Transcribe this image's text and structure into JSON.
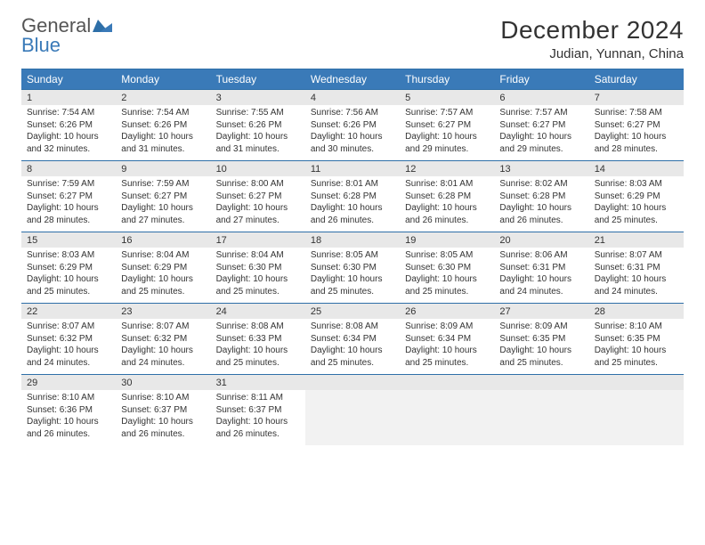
{
  "logo": {
    "text1": "General",
    "text2": "Blue"
  },
  "title": "December 2024",
  "location": "Judian, Yunnan, China",
  "colors": {
    "header_bg": "#3a7ab8",
    "header_text": "#ffffff",
    "border": "#2e6fa8",
    "daynum_bg": "#e8e8e8",
    "body_text": "#333333",
    "logo_gray": "#555555",
    "logo_blue": "#3a7ab8"
  },
  "weekdays": [
    "Sunday",
    "Monday",
    "Tuesday",
    "Wednesday",
    "Thursday",
    "Friday",
    "Saturday"
  ],
  "weeks": [
    [
      {
        "n": "1",
        "sr": "Sunrise: 7:54 AM",
        "ss": "Sunset: 6:26 PM",
        "d1": "Daylight: 10 hours",
        "d2": "and 32 minutes."
      },
      {
        "n": "2",
        "sr": "Sunrise: 7:54 AM",
        "ss": "Sunset: 6:26 PM",
        "d1": "Daylight: 10 hours",
        "d2": "and 31 minutes."
      },
      {
        "n": "3",
        "sr": "Sunrise: 7:55 AM",
        "ss": "Sunset: 6:26 PM",
        "d1": "Daylight: 10 hours",
        "d2": "and 31 minutes."
      },
      {
        "n": "4",
        "sr": "Sunrise: 7:56 AM",
        "ss": "Sunset: 6:26 PM",
        "d1": "Daylight: 10 hours",
        "d2": "and 30 minutes."
      },
      {
        "n": "5",
        "sr": "Sunrise: 7:57 AM",
        "ss": "Sunset: 6:27 PM",
        "d1": "Daylight: 10 hours",
        "d2": "and 29 minutes."
      },
      {
        "n": "6",
        "sr": "Sunrise: 7:57 AM",
        "ss": "Sunset: 6:27 PM",
        "d1": "Daylight: 10 hours",
        "d2": "and 29 minutes."
      },
      {
        "n": "7",
        "sr": "Sunrise: 7:58 AM",
        "ss": "Sunset: 6:27 PM",
        "d1": "Daylight: 10 hours",
        "d2": "and 28 minutes."
      }
    ],
    [
      {
        "n": "8",
        "sr": "Sunrise: 7:59 AM",
        "ss": "Sunset: 6:27 PM",
        "d1": "Daylight: 10 hours",
        "d2": "and 28 minutes."
      },
      {
        "n": "9",
        "sr": "Sunrise: 7:59 AM",
        "ss": "Sunset: 6:27 PM",
        "d1": "Daylight: 10 hours",
        "d2": "and 27 minutes."
      },
      {
        "n": "10",
        "sr": "Sunrise: 8:00 AM",
        "ss": "Sunset: 6:27 PM",
        "d1": "Daylight: 10 hours",
        "d2": "and 27 minutes."
      },
      {
        "n": "11",
        "sr": "Sunrise: 8:01 AM",
        "ss": "Sunset: 6:28 PM",
        "d1": "Daylight: 10 hours",
        "d2": "and 26 minutes."
      },
      {
        "n": "12",
        "sr": "Sunrise: 8:01 AM",
        "ss": "Sunset: 6:28 PM",
        "d1": "Daylight: 10 hours",
        "d2": "and 26 minutes."
      },
      {
        "n": "13",
        "sr": "Sunrise: 8:02 AM",
        "ss": "Sunset: 6:28 PM",
        "d1": "Daylight: 10 hours",
        "d2": "and 26 minutes."
      },
      {
        "n": "14",
        "sr": "Sunrise: 8:03 AM",
        "ss": "Sunset: 6:29 PM",
        "d1": "Daylight: 10 hours",
        "d2": "and 25 minutes."
      }
    ],
    [
      {
        "n": "15",
        "sr": "Sunrise: 8:03 AM",
        "ss": "Sunset: 6:29 PM",
        "d1": "Daylight: 10 hours",
        "d2": "and 25 minutes."
      },
      {
        "n": "16",
        "sr": "Sunrise: 8:04 AM",
        "ss": "Sunset: 6:29 PM",
        "d1": "Daylight: 10 hours",
        "d2": "and 25 minutes."
      },
      {
        "n": "17",
        "sr": "Sunrise: 8:04 AM",
        "ss": "Sunset: 6:30 PM",
        "d1": "Daylight: 10 hours",
        "d2": "and 25 minutes."
      },
      {
        "n": "18",
        "sr": "Sunrise: 8:05 AM",
        "ss": "Sunset: 6:30 PM",
        "d1": "Daylight: 10 hours",
        "d2": "and 25 minutes."
      },
      {
        "n": "19",
        "sr": "Sunrise: 8:05 AM",
        "ss": "Sunset: 6:30 PM",
        "d1": "Daylight: 10 hours",
        "d2": "and 25 minutes."
      },
      {
        "n": "20",
        "sr": "Sunrise: 8:06 AM",
        "ss": "Sunset: 6:31 PM",
        "d1": "Daylight: 10 hours",
        "d2": "and 24 minutes."
      },
      {
        "n": "21",
        "sr": "Sunrise: 8:07 AM",
        "ss": "Sunset: 6:31 PM",
        "d1": "Daylight: 10 hours",
        "d2": "and 24 minutes."
      }
    ],
    [
      {
        "n": "22",
        "sr": "Sunrise: 8:07 AM",
        "ss": "Sunset: 6:32 PM",
        "d1": "Daylight: 10 hours",
        "d2": "and 24 minutes."
      },
      {
        "n": "23",
        "sr": "Sunrise: 8:07 AM",
        "ss": "Sunset: 6:32 PM",
        "d1": "Daylight: 10 hours",
        "d2": "and 24 minutes."
      },
      {
        "n": "24",
        "sr": "Sunrise: 8:08 AM",
        "ss": "Sunset: 6:33 PM",
        "d1": "Daylight: 10 hours",
        "d2": "and 25 minutes."
      },
      {
        "n": "25",
        "sr": "Sunrise: 8:08 AM",
        "ss": "Sunset: 6:34 PM",
        "d1": "Daylight: 10 hours",
        "d2": "and 25 minutes."
      },
      {
        "n": "26",
        "sr": "Sunrise: 8:09 AM",
        "ss": "Sunset: 6:34 PM",
        "d1": "Daylight: 10 hours",
        "d2": "and 25 minutes."
      },
      {
        "n": "27",
        "sr": "Sunrise: 8:09 AM",
        "ss": "Sunset: 6:35 PM",
        "d1": "Daylight: 10 hours",
        "d2": "and 25 minutes."
      },
      {
        "n": "28",
        "sr": "Sunrise: 8:10 AM",
        "ss": "Sunset: 6:35 PM",
        "d1": "Daylight: 10 hours",
        "d2": "and 25 minutes."
      }
    ],
    [
      {
        "n": "29",
        "sr": "Sunrise: 8:10 AM",
        "ss": "Sunset: 6:36 PM",
        "d1": "Daylight: 10 hours",
        "d2": "and 26 minutes."
      },
      {
        "n": "30",
        "sr": "Sunrise: 8:10 AM",
        "ss": "Sunset: 6:37 PM",
        "d1": "Daylight: 10 hours",
        "d2": "and 26 minutes."
      },
      {
        "n": "31",
        "sr": "Sunrise: 8:11 AM",
        "ss": "Sunset: 6:37 PM",
        "d1": "Daylight: 10 hours",
        "d2": "and 26 minutes."
      },
      {
        "empty": true
      },
      {
        "empty": true
      },
      {
        "empty": true
      },
      {
        "empty": true
      }
    ]
  ]
}
